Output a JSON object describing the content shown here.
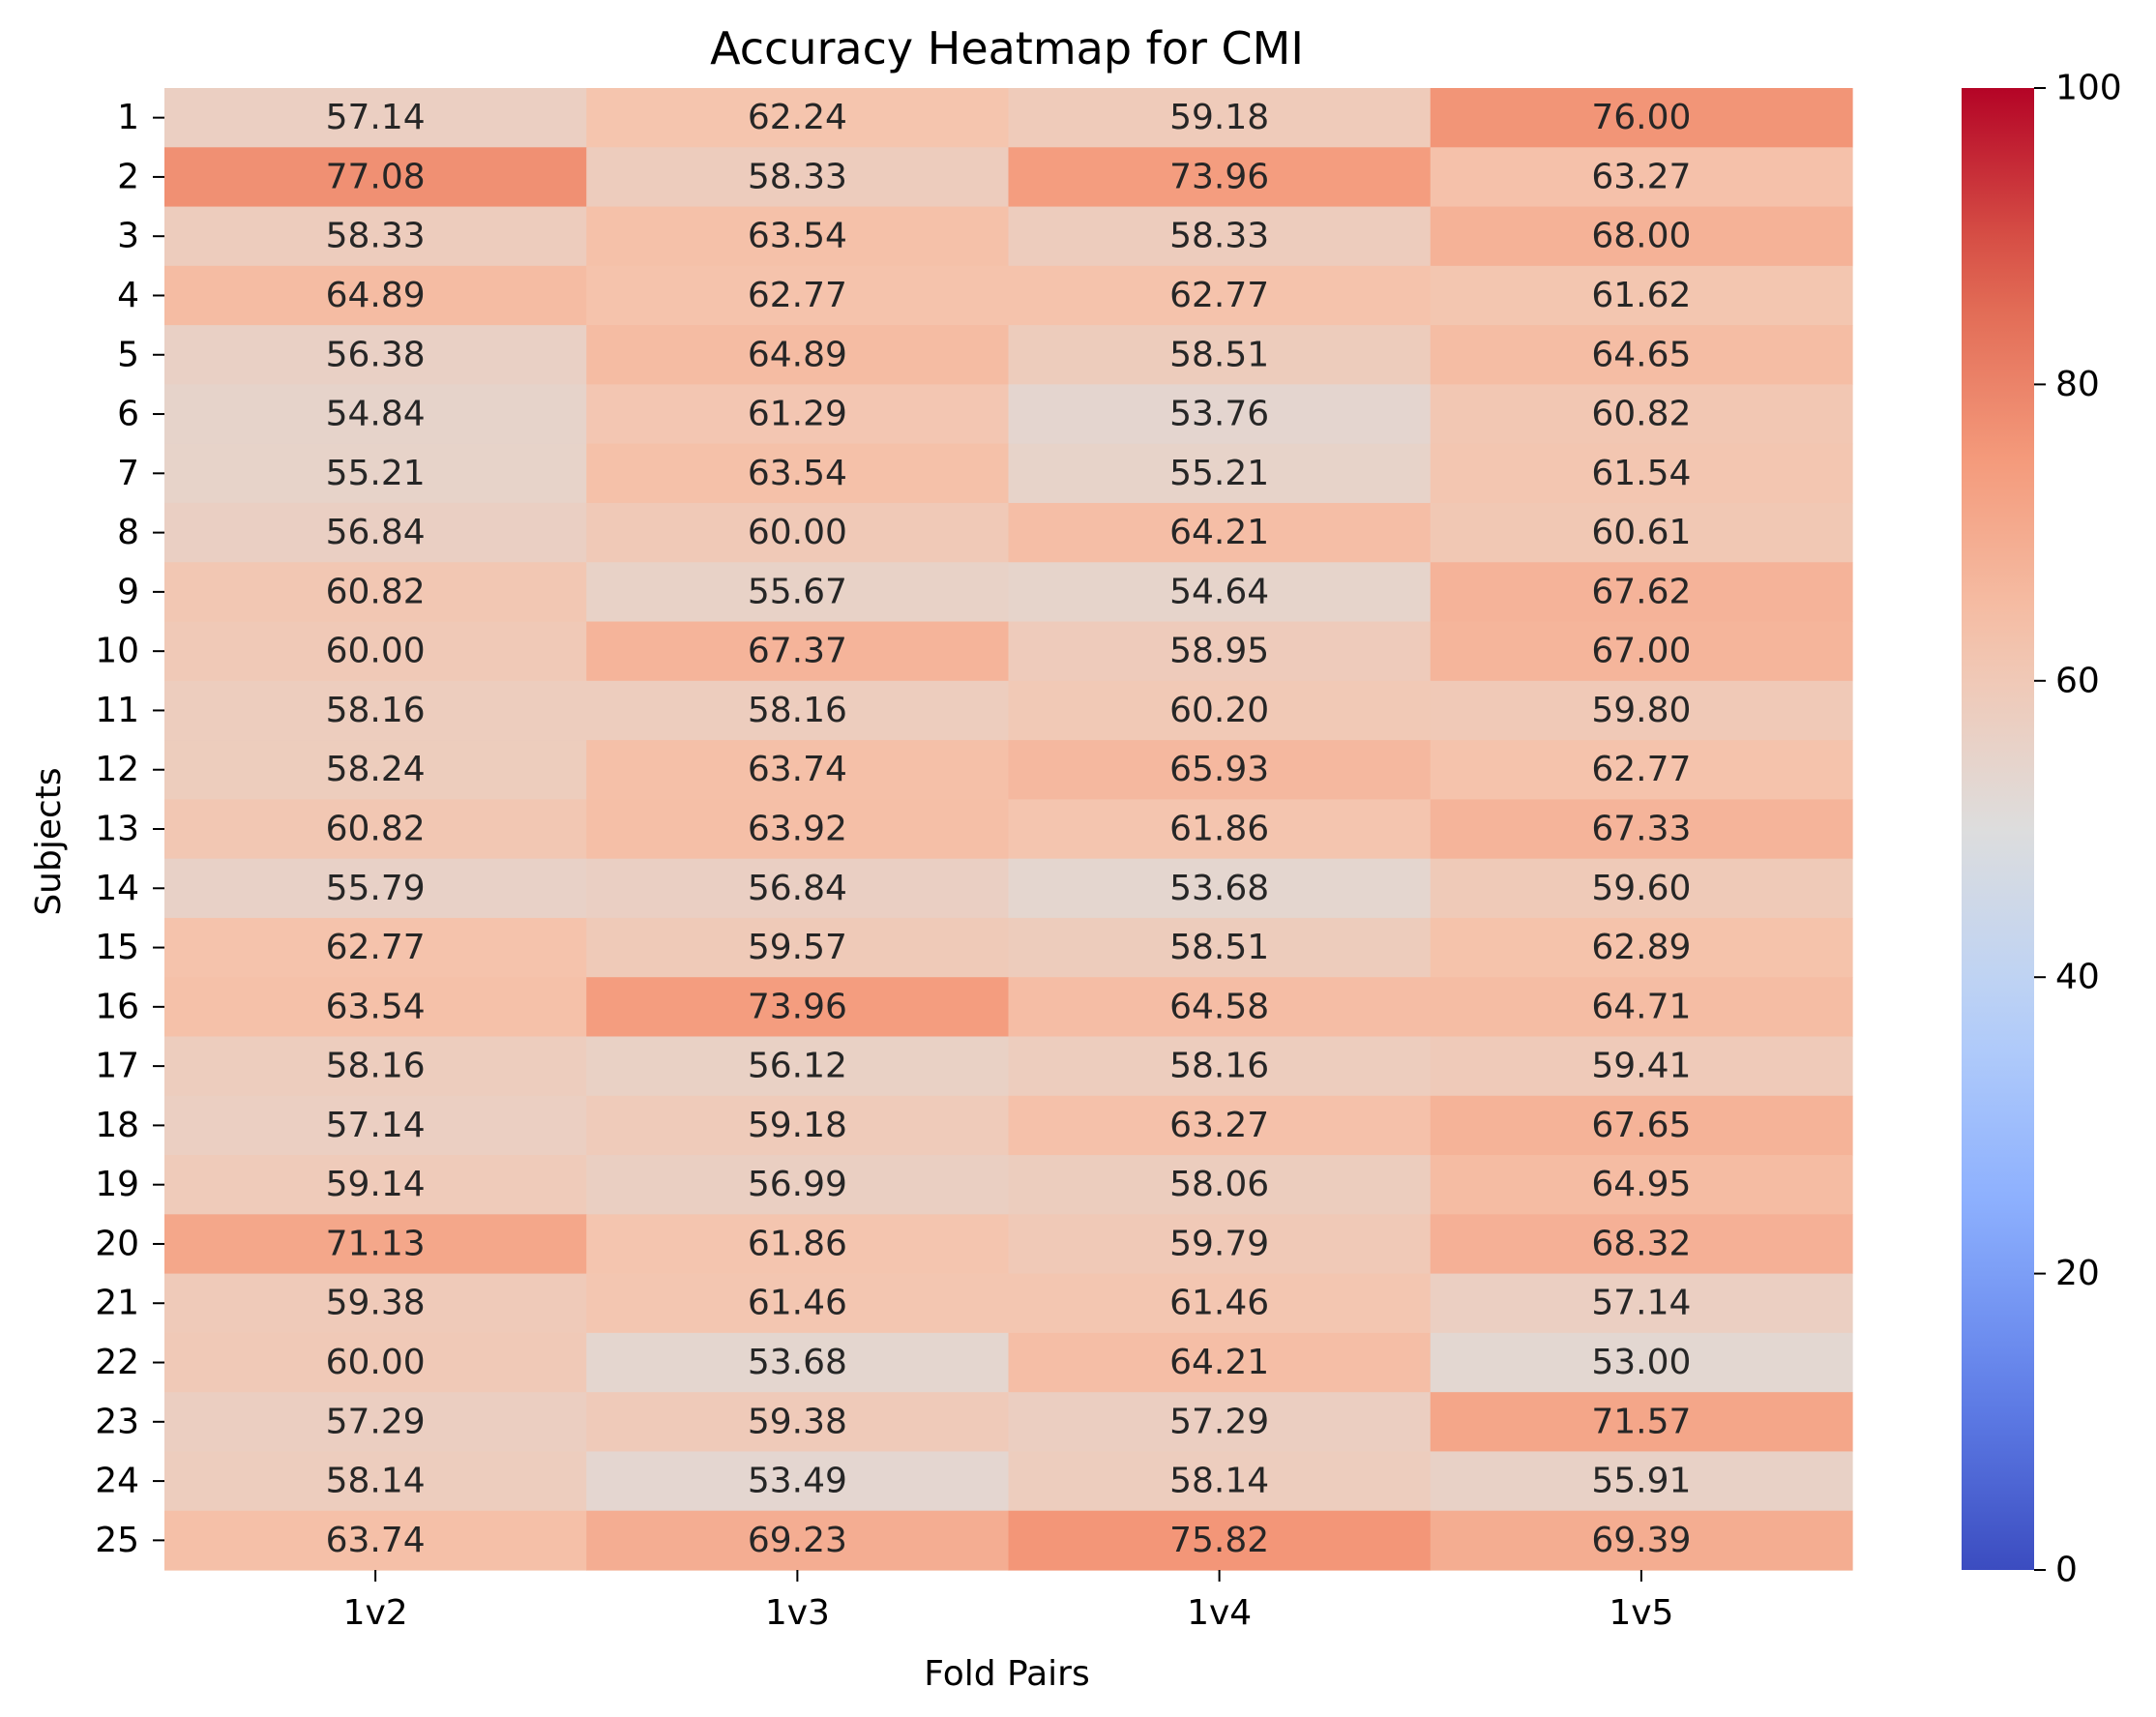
{
  "chart_data": {
    "type": "heatmap",
    "title": "Accuracy Heatmap for CMI",
    "xlabel": "Fold Pairs",
    "ylabel": "Subjects",
    "x_categories": [
      "1v2",
      "1v3",
      "1v4",
      "1v5"
    ],
    "y_categories": [
      "1",
      "2",
      "3",
      "4",
      "5",
      "6",
      "7",
      "8",
      "9",
      "10",
      "11",
      "12",
      "13",
      "14",
      "15",
      "16",
      "17",
      "18",
      "19",
      "20",
      "21",
      "22",
      "23",
      "24",
      "25"
    ],
    "values": [
      [
        57.14,
        62.24,
        59.18,
        76.0
      ],
      [
        77.08,
        58.33,
        73.96,
        63.27
      ],
      [
        58.33,
        63.54,
        58.33,
        68.0
      ],
      [
        64.89,
        62.77,
        62.77,
        61.62
      ],
      [
        56.38,
        64.89,
        58.51,
        64.65
      ],
      [
        54.84,
        61.29,
        53.76,
        60.82
      ],
      [
        55.21,
        63.54,
        55.21,
        61.54
      ],
      [
        56.84,
        60.0,
        64.21,
        60.61
      ],
      [
        60.82,
        55.67,
        54.64,
        67.62
      ],
      [
        60.0,
        67.37,
        58.95,
        67.0
      ],
      [
        58.16,
        58.16,
        60.2,
        59.8
      ],
      [
        58.24,
        63.74,
        65.93,
        62.77
      ],
      [
        60.82,
        63.92,
        61.86,
        67.33
      ],
      [
        55.79,
        56.84,
        53.68,
        59.6
      ],
      [
        62.77,
        59.57,
        58.51,
        62.89
      ],
      [
        63.54,
        73.96,
        64.58,
        64.71
      ],
      [
        58.16,
        56.12,
        58.16,
        59.41
      ],
      [
        57.14,
        59.18,
        63.27,
        67.65
      ],
      [
        59.14,
        56.99,
        58.06,
        64.95
      ],
      [
        71.13,
        61.86,
        59.79,
        68.32
      ],
      [
        59.38,
        61.46,
        61.46,
        57.14
      ],
      [
        60.0,
        53.68,
        64.21,
        53.0
      ],
      [
        57.29,
        59.38,
        57.29,
        71.57
      ],
      [
        58.14,
        53.49,
        58.14,
        55.91
      ],
      [
        63.74,
        69.23,
        75.82,
        69.39
      ]
    ],
    "cell_labels": [
      [
        "57.14",
        "62.24",
        "59.18",
        "76.00"
      ],
      [
        "77.08",
        "58.33",
        "73.96",
        "63.27"
      ],
      [
        "58.33",
        "63.54",
        "58.33",
        "68.00"
      ],
      [
        "64.89",
        "62.77",
        "62.77",
        "61.62"
      ],
      [
        "56.38",
        "64.89",
        "58.51",
        "64.65"
      ],
      [
        "54.84",
        "61.29",
        "53.76",
        "60.82"
      ],
      [
        "55.21",
        "63.54",
        "55.21",
        "61.54"
      ],
      [
        "56.84",
        "60.00",
        "64.21",
        "60.61"
      ],
      [
        "60.82",
        "55.67",
        "54.64",
        "67.62"
      ],
      [
        "60.00",
        "67.37",
        "58.95",
        "67.00"
      ],
      [
        "58.16",
        "58.16",
        "60.20",
        "59.80"
      ],
      [
        "58.24",
        "63.74",
        "65.93",
        "62.77"
      ],
      [
        "60.82",
        "63.92",
        "61.86",
        "67.33"
      ],
      [
        "55.79",
        "56.84",
        "53.68",
        "59.60"
      ],
      [
        "62.77",
        "59.57",
        "58.51",
        "62.89"
      ],
      [
        "63.54",
        "73.96",
        "64.58",
        "64.71"
      ],
      [
        "58.16",
        "56.12",
        "58.16",
        "59.41"
      ],
      [
        "57.14",
        "59.18",
        "63.27",
        "67.65"
      ],
      [
        "59.14",
        "56.99",
        "58.06",
        "64.95"
      ],
      [
        "71.13",
        "61.86",
        "59.79",
        "68.32"
      ],
      [
        "59.38",
        "61.46",
        "61.46",
        "57.14"
      ],
      [
        "60.00",
        "53.68",
        "64.21",
        "53.00"
      ],
      [
        "57.29",
        "59.38",
        "57.29",
        "71.57"
      ],
      [
        "58.14",
        "53.49",
        "58.14",
        "55.91"
      ],
      [
        "63.74",
        "69.23",
        "75.82",
        "69.39"
      ]
    ],
    "colormap": "coolwarm",
    "vmin": 0,
    "vmax": 100,
    "colorbar_ticks": [
      0,
      20,
      40,
      60,
      80,
      100
    ],
    "colorbar_tick_labels": [
      "0",
      "20",
      "40",
      "60",
      "80",
      "100"
    ],
    "grid": false,
    "colors": {
      "low": "#3b4cc0",
      "mid": "#dddddd",
      "high": "#b40426",
      "text_dark": "#262626",
      "text_light": "#ffffff"
    }
  }
}
